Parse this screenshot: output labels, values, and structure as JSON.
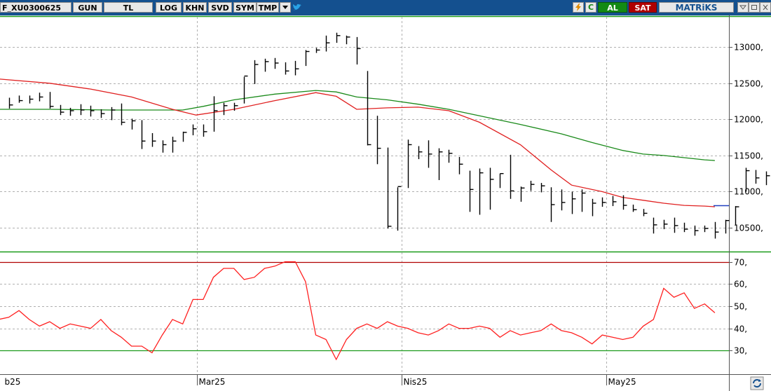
{
  "toolbar": {
    "symbol": "F_XU0300625",
    "period": "GUN",
    "currency": "TL",
    "buttons": [
      "LOG",
      "KHN",
      "SVD",
      "SYM",
      "TMP"
    ],
    "buy_label": "AL",
    "sell_label": "SAT",
    "brand": "MATRiKS",
    "icons": [
      "dropdown-icon",
      "twitter-icon",
      "lightning-icon",
      "c-icon",
      "minimize-icon",
      "restore-icon",
      "close-icon",
      "refresh-icon"
    ]
  },
  "colors": {
    "toolbar_bg": "#14508f",
    "candle": "#000000",
    "ma_short": "#e02020",
    "ma_long": "#1a8a1a",
    "rsi_line": "#ff2020",
    "rsi_upper": "#b00000",
    "rsi_lower": "#1a9a1a",
    "last_price": "#2040c0"
  },
  "chart_data": [
    {
      "type": "ohlc",
      "price_axis_labels": [
        "13000,",
        "12500,",
        "12000,",
        "11500,",
        "11000,",
        "10500,"
      ],
      "price_axis_values": [
        13000,
        12500,
        12000,
        11500,
        11000,
        10500
      ],
      "ylim": [
        10180,
        13420
      ],
      "x_labels": [
        "b25",
        "Mar25",
        "Nis25",
        "May25"
      ],
      "x_label_index": [
        -0.6,
        18.4,
        38.4,
        58.4
      ],
      "bars": [
        [
          12300,
          12150,
          12200
        ],
        [
          12330,
          12230,
          12260
        ],
        [
          12330,
          12220,
          12280
        ],
        [
          12370,
          12250,
          12310
        ],
        [
          12380,
          12150,
          12180
        ],
        [
          12200,
          12060,
          12100
        ],
        [
          12160,
          12050,
          12120
        ],
        [
          12210,
          12060,
          12130
        ],
        [
          12190,
          12040,
          12120
        ],
        [
          12140,
          12020,
          12080
        ],
        [
          12170,
          11990,
          12130
        ],
        [
          12220,
          11920,
          11960
        ],
        [
          12010,
          11860,
          11980
        ],
        [
          11990,
          11590,
          11700
        ],
        [
          11810,
          11620,
          11700
        ],
        [
          11710,
          11540,
          11650
        ],
        [
          11760,
          11540,
          11700
        ],
        [
          11830,
          11690,
          11820
        ],
        [
          11930,
          11780,
          11870
        ],
        [
          11930,
          11760,
          11830
        ],
        [
          12320,
          11830,
          12120
        ],
        [
          12230,
          12060,
          12190
        ],
        [
          12230,
          12120,
          12190
        ],
        [
          12590,
          12220,
          12600
        ],
        [
          12820,
          12490,
          12760
        ],
        [
          12840,
          12660,
          12800
        ],
        [
          12850,
          12700,
          12780
        ],
        [
          12790,
          12620,
          12670
        ],
        [
          12810,
          12610,
          12700
        ],
        [
          12960,
          12740,
          12940
        ],
        [
          12990,
          12920,
          12960
        ],
        [
          13160,
          12940,
          13060
        ],
        [
          13200,
          13060,
          13160
        ],
        [
          13160,
          13040,
          13140
        ],
        [
          13140,
          12760,
          12980
        ],
        [
          12670,
          11640,
          11650
        ],
        [
          12050,
          11380,
          11600
        ],
        [
          11610,
          10490,
          10520
        ],
        [
          11060,
          10460,
          11070
        ],
        [
          11720,
          11050,
          11650
        ],
        [
          11630,
          11450,
          11550
        ],
        [
          11710,
          11330,
          11520
        ],
        [
          11600,
          11160,
          11550
        ],
        [
          11580,
          11400,
          11530
        ],
        [
          11480,
          11240,
          11380
        ],
        [
          11290,
          10720,
          11030
        ],
        [
          11320,
          10680,
          11260
        ],
        [
          11330,
          10750,
          11170
        ],
        [
          11250,
          11050,
          11250
        ],
        [
          11510,
          10900,
          11010
        ],
        [
          11070,
          10860,
          11050
        ],
        [
          11150,
          11010,
          11100
        ],
        [
          11120,
          10990,
          11080
        ],
        [
          11060,
          10580,
          10820
        ],
        [
          11030,
          10740,
          10850
        ],
        [
          11000,
          10690,
          10900
        ],
        [
          11030,
          10720,
          10980
        ],
        [
          10900,
          10660,
          10840
        ],
        [
          10920,
          10790,
          10850
        ],
        [
          10940,
          10800,
          10860
        ],
        [
          10950,
          10750,
          10810
        ],
        [
          10820,
          10720,
          10750
        ],
        [
          10760,
          10660,
          10700
        ],
        [
          10640,
          10420,
          10540
        ],
        [
          10610,
          10480,
          10550
        ],
        [
          10640,
          10430,
          10530
        ],
        [
          10570,
          10440,
          10480
        ],
        [
          10530,
          10390,
          10460
        ],
        [
          10530,
          10440,
          10490
        ],
        [
          10580,
          10350,
          10440
        ],
        [
          10610,
          10420,
          10600
        ],
        [
          10800,
          10540,
          10790
        ],
        [
          11330,
          11000,
          11290
        ],
        [
          11300,
          11110,
          11190
        ],
        [
          11280,
          11090,
          11220
        ],
        [
          11180,
          10910,
          11000
        ],
        [
          11090,
          10900,
          11050
        ]
      ],
      "ma_short": [
        [
          -1,
          12560
        ],
        [
          4,
          12500
        ],
        [
          8,
          12420
        ],
        [
          12,
          12310
        ],
        [
          16,
          12140
        ],
        [
          18.3,
          12060
        ],
        [
          22,
          12140
        ],
        [
          26,
          12260
        ],
        [
          30,
          12370
        ],
        [
          32,
          12320
        ],
        [
          34,
          12140
        ],
        [
          37,
          12160
        ],
        [
          40,
          12170
        ],
        [
          43,
          12120
        ],
        [
          46,
          11960
        ],
        [
          50,
          11650
        ],
        [
          53,
          11300
        ],
        [
          55,
          11090
        ],
        [
          58,
          11000
        ],
        [
          60,
          10920
        ],
        [
          62,
          10880
        ],
        [
          64,
          10840
        ],
        [
          66,
          10810
        ],
        [
          68,
          10800
        ],
        [
          69,
          10790
        ]
      ],
      "ma_long": [
        [
          -1,
          12140
        ],
        [
          4,
          12140
        ],
        [
          10,
          12130
        ],
        [
          17,
          12130
        ],
        [
          19,
          12180
        ],
        [
          22,
          12270
        ],
        [
          26,
          12350
        ],
        [
          30,
          12400
        ],
        [
          32,
          12380
        ],
        [
          34,
          12310
        ],
        [
          37,
          12270
        ],
        [
          40,
          12210
        ],
        [
          43,
          12140
        ],
        [
          46,
          12050
        ],
        [
          50,
          11930
        ],
        [
          54,
          11800
        ],
        [
          57,
          11680
        ],
        [
          60,
          11570
        ],
        [
          62,
          11520
        ],
        [
          64,
          11500
        ],
        [
          66,
          11470
        ],
        [
          68,
          11440
        ],
        [
          69,
          11430
        ]
      ],
      "last_price": 10810
    },
    {
      "type": "line",
      "title": "",
      "axis_labels": [
        "70,",
        "60,",
        "50,",
        "40,",
        "30,"
      ],
      "axis_values": [
        70,
        60,
        50,
        40,
        30
      ],
      "ylim": [
        20,
        73
      ],
      "upper_band": 70,
      "lower_band": 30,
      "values": [
        [
          -1,
          44
        ],
        [
          0,
          45
        ],
        [
          1,
          48
        ],
        [
          2,
          44
        ],
        [
          3,
          41
        ],
        [
          4,
          43
        ],
        [
          5,
          40
        ],
        [
          6,
          42
        ],
        [
          7,
          41
        ],
        [
          8,
          40
        ],
        [
          9,
          44
        ],
        [
          10,
          39
        ],
        [
          11,
          36
        ],
        [
          12,
          32
        ],
        [
          13,
          32
        ],
        [
          14,
          29
        ],
        [
          15,
          37
        ],
        [
          16,
          44
        ],
        [
          17,
          42
        ],
        [
          18,
          53
        ],
        [
          19,
          53
        ],
        [
          20,
          63
        ],
        [
          21,
          67
        ],
        [
          22,
          67
        ],
        [
          23,
          62
        ],
        [
          24,
          63
        ],
        [
          25,
          67
        ],
        [
          26,
          68
        ],
        [
          27,
          70
        ],
        [
          28,
          70
        ],
        [
          29,
          61
        ],
        [
          30,
          37
        ],
        [
          31,
          35
        ],
        [
          32,
          26
        ],
        [
          33,
          35
        ],
        [
          34,
          40
        ],
        [
          35,
          42
        ],
        [
          36,
          40
        ],
        [
          37,
          43
        ],
        [
          38,
          41
        ],
        [
          39,
          40
        ],
        [
          40,
          38
        ],
        [
          41,
          37
        ],
        [
          42,
          39
        ],
        [
          43,
          42
        ],
        [
          44,
          40
        ],
        [
          45,
          40
        ],
        [
          46,
          41
        ],
        [
          47,
          40
        ],
        [
          48,
          36
        ],
        [
          49,
          39
        ],
        [
          50,
          37
        ],
        [
          51,
          38
        ],
        [
          52,
          39
        ],
        [
          53,
          42
        ],
        [
          54,
          39
        ],
        [
          55,
          38
        ],
        [
          56,
          36
        ],
        [
          57,
          33
        ],
        [
          58,
          37
        ],
        [
          59,
          36
        ],
        [
          60,
          35
        ],
        [
          61,
          36
        ],
        [
          62,
          41
        ],
        [
          63,
          44
        ],
        [
          64,
          58
        ],
        [
          65,
          54
        ],
        [
          66,
          56
        ],
        [
          67,
          49
        ],
        [
          68,
          51
        ],
        [
          69,
          47
        ]
      ]
    }
  ]
}
